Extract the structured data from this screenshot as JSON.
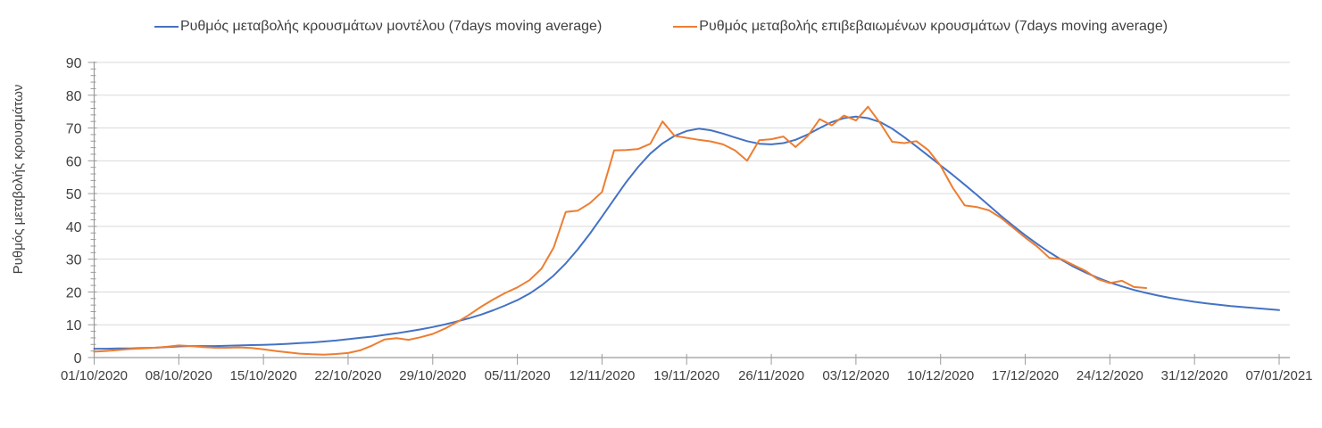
{
  "legend": {
    "items": [
      {
        "label": "Ρυθμός μεταβολής κρουσμάτων μοντέλου (7days moving average)",
        "color": "#4472C4"
      },
      {
        "label": "Ρυθμός μεταβολής επιβεβαιωμένων κρουσμάτων (7days moving average)",
        "color": "#ED7D31"
      }
    ]
  },
  "chart_data": {
    "type": "line",
    "title": "",
    "xlabel": "",
    "ylabel": "Ρυθμός μεταβολής κρουσμάτων",
    "ylim": [
      0,
      90
    ],
    "y_major_step": 10,
    "y_minor_step": 2,
    "y_tick_labels": [
      "0",
      "10",
      "20",
      "30",
      "40",
      "50",
      "60",
      "70",
      "80",
      "90"
    ],
    "grid": "horizontal",
    "legend_position": "top",
    "x_tick_interval_days": 7,
    "x_total_days": 98,
    "x_tick_labels": [
      "01/10/2020",
      "08/10/2020",
      "15/10/2020",
      "22/10/2020",
      "29/10/2020",
      "05/11/2020",
      "12/11/2020",
      "19/11/2020",
      "26/11/2020",
      "03/12/2020",
      "10/12/2020",
      "17/12/2020",
      "24/12/2020",
      "31/12/2020",
      "07/01/2021"
    ],
    "axis_color": "#9b9b9b",
    "gridline_color": "#d9d9d9",
    "tick_label_color": "#404040",
    "series": [
      {
        "name": "Ρυθμός μεταβολής κρουσμάτων μοντέλου (7days moving average)",
        "key": "model",
        "color": "#4472C4",
        "start_day": 0,
        "values": [
          2.7,
          2.7,
          2.8,
          2.8,
          2.9,
          3.0,
          3.2,
          3.4,
          3.5,
          3.5,
          3.5,
          3.6,
          3.7,
          3.8,
          3.9,
          4.0,
          4.2,
          4.4,
          4.6,
          4.9,
          5.2,
          5.6,
          6.0,
          6.4,
          6.9,
          7.4,
          8.0,
          8.6,
          9.3,
          10.1,
          11.0,
          12.0,
          13.1,
          14.4,
          15.9,
          17.5,
          19.5,
          22.0,
          25.0,
          28.7,
          33.0,
          37.8,
          43.0,
          48.3,
          53.5,
          58.2,
          62.2,
          65.3,
          67.6,
          69.1,
          69.8,
          69.3,
          68.3,
          67.1,
          66.0,
          65.2,
          65.0,
          65.4,
          66.4,
          68.0,
          70.0,
          71.8,
          73.0,
          73.5,
          73.0,
          71.8,
          69.8,
          67.2,
          64.4,
          61.5,
          58.6,
          55.7,
          52.7,
          49.6,
          46.4,
          43.2,
          40.2,
          37.3,
          34.6,
          32.1,
          29.8,
          27.7,
          25.9,
          24.3,
          22.9,
          21.7,
          20.6,
          19.7,
          18.9,
          18.2,
          17.6,
          17.0,
          16.5,
          16.1,
          15.7,
          15.4,
          15.1,
          14.8,
          14.5
        ]
      },
      {
        "name": "Ρυθμός μεταβολής επιβεβαιωμένων κρουσμάτων (7days moving average)",
        "key": "confirmed",
        "color": "#ED7D31",
        "start_day": 0,
        "values": [
          1.8,
          2.0,
          2.3,
          2.6,
          2.8,
          3.0,
          3.3,
          3.7,
          3.5,
          3.2,
          3.0,
          3.0,
          3.1,
          2.9,
          2.5,
          2.0,
          1.6,
          1.2,
          1.0,
          0.9,
          1.1,
          1.4,
          2.2,
          3.7,
          5.5,
          5.9,
          5.4,
          6.2,
          7.2,
          8.8,
          10.8,
          13.0,
          15.5,
          17.7,
          19.7,
          21.4,
          23.6,
          27.1,
          33.5,
          44.4,
          44.8,
          47.1,
          50.5,
          63.2,
          63.3,
          63.6,
          65.2,
          72.0,
          67.6,
          67.0,
          66.4,
          65.9,
          65.0,
          63.2,
          60.0,
          66.3,
          66.6,
          67.4,
          64.2,
          67.5,
          72.7,
          70.8,
          73.8,
          72.3,
          76.5,
          71.5,
          65.8,
          65.4,
          66.0,
          63.2,
          58.5,
          51.8,
          46.4,
          45.9,
          44.9,
          42.6,
          39.6,
          36.6,
          33.8,
          30.4,
          30.0,
          28.2,
          26.4,
          23.9,
          22.7,
          23.4,
          21.5,
          21.2
        ]
      }
    ]
  }
}
